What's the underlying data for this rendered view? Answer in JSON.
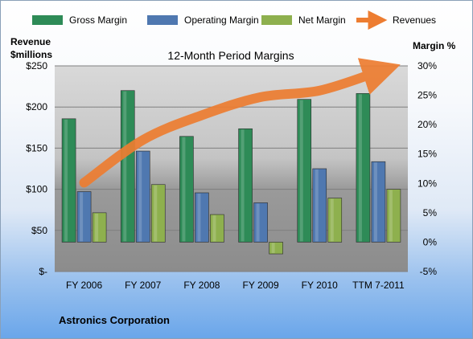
{
  "chart_data": {
    "type": "bar",
    "title": "12-Month Period Margins",
    "categories": [
      "FY 2006",
      "FY 2007",
      "FY 2008",
      "FY 2009",
      "FY 2010",
      "TTM 7-2011"
    ],
    "series": [
      {
        "name": "Gross Margin",
        "axis": "right",
        "color": "#2e8b57",
        "values": [
          21.0,
          25.8,
          18.0,
          19.3,
          24.3,
          25.3
        ]
      },
      {
        "name": "Operating Margin",
        "axis": "right",
        "color": "#4f78b0",
        "values": [
          8.6,
          15.5,
          8.4,
          6.7,
          12.5,
          13.7
        ]
      },
      {
        "name": "Net Margin",
        "axis": "right",
        "color": "#8eb04e",
        "values": [
          5.0,
          9.8,
          4.7,
          -2.0,
          7.5,
          9.0
        ]
      },
      {
        "name": "Revenues",
        "type": "line",
        "axis": "left",
        "color": "#ed7d31",
        "values": [
          108,
          160,
          190,
          212,
          220,
          243
        ]
      }
    ],
    "left_axis": {
      "label_line1": "Revenue",
      "label_line2": "$millions",
      "ticks": [
        "$-",
        "$50",
        "$100",
        "$150",
        "$200",
        "$250"
      ],
      "range": [
        0,
        250
      ]
    },
    "right_axis": {
      "label": "Margin %",
      "ticks": [
        "-5%",
        "0%",
        "5%",
        "10%",
        "15%",
        "20%",
        "25%",
        "30%"
      ],
      "range": [
        -5,
        30
      ]
    },
    "legend_position": "top",
    "grid": true,
    "footer": "Astronics Corporation"
  }
}
